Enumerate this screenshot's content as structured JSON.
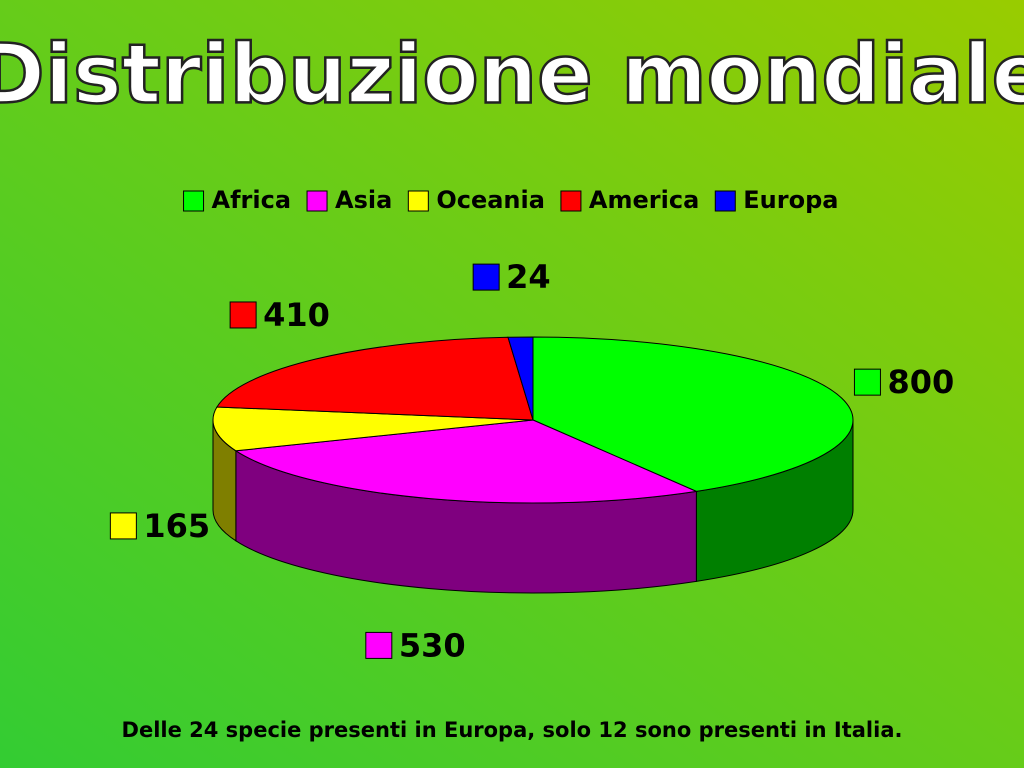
{
  "chart_data": {
    "type": "pie3d",
    "title": "Distribuzione mondiale",
    "categories": [
      "Africa",
      "Asia",
      "Oceania",
      "America",
      "Europa"
    ],
    "values": [
      800,
      530,
      165,
      410,
      24
    ],
    "colors": [
      "#00ff00",
      "#ff00ff",
      "#ffff00",
      "#ff0000",
      "#0000ff"
    ],
    "legend": "top",
    "note": "Delle 24 specie presenti in Europa, solo 12 sono presenti in Italia."
  }
}
